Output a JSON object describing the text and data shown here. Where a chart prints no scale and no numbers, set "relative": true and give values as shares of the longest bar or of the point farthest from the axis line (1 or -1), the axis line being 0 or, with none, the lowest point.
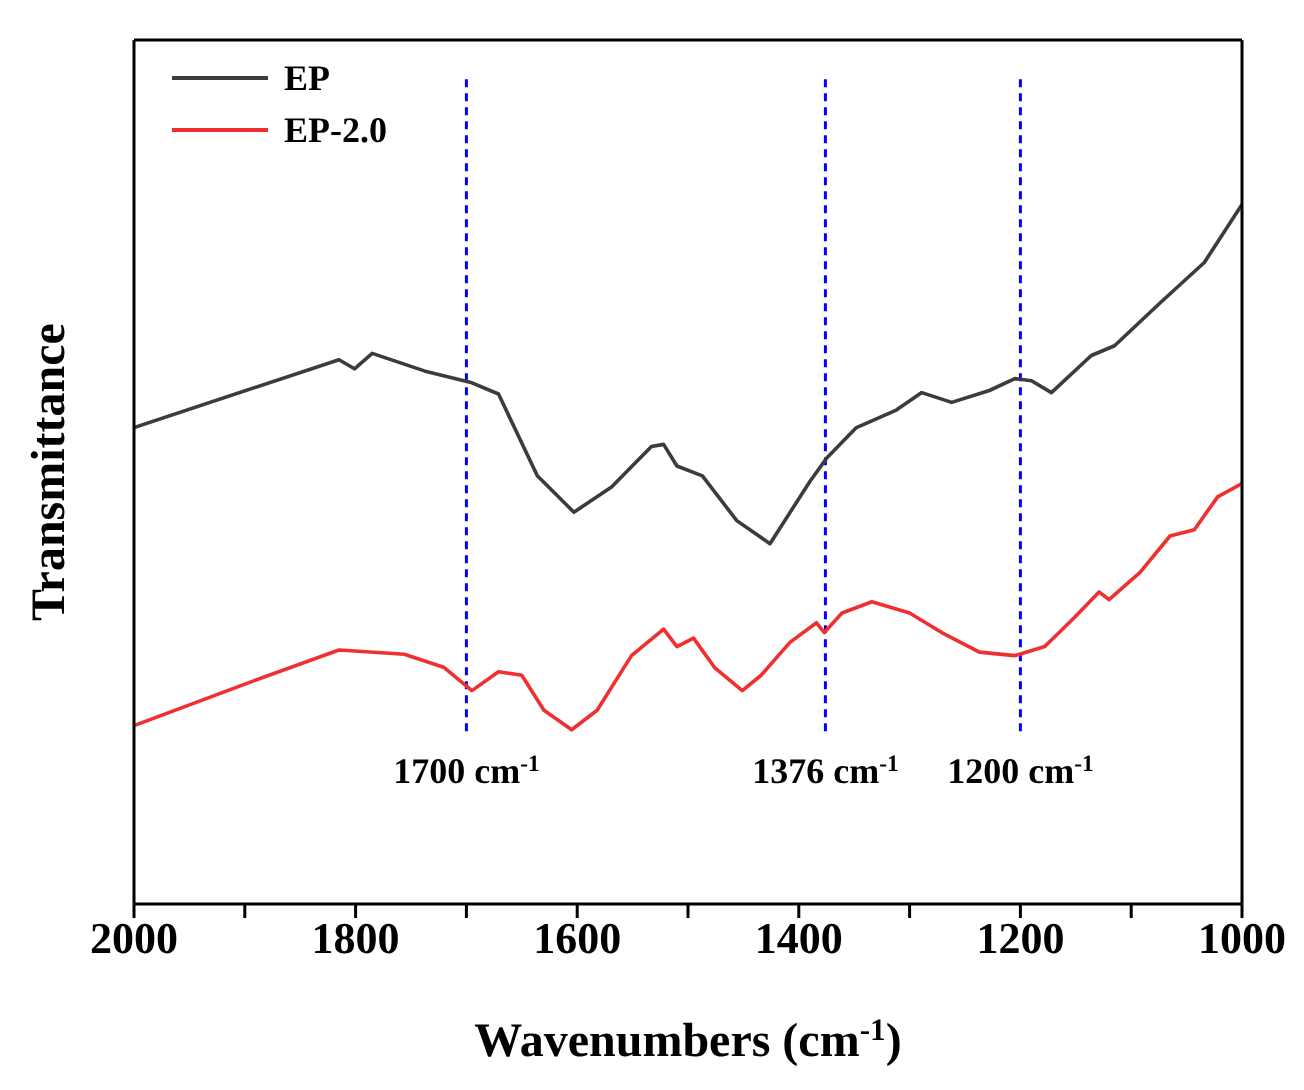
{
  "chart_data": {
    "type": "line",
    "xlabel": "Wavenumbers (cm$^{-1}$)",
    "ylabel": "Transmittance",
    "relative": true,
    "legend": "top left",
    "line_style": "solid",
    "marker": "none",
    "xlim": [
      2000,
      1000
    ],
    "xticks": [
      2000,
      {
        "value": 1900,
        "label": null
      },
      1800,
      {
        "value": 1700,
        "label": null
      },
      1600,
      {
        "value": 1500,
        "label": null
      },
      1400,
      {
        "value": 1300,
        "label": null
      },
      1200,
      {
        "value": 1100,
        "label": null
      },
      1000
    ],
    "series": [
      {
        "name": "EP",
        "color": "#3c3c3c",
        "x": [
          2000,
          1815,
          1801,
          1785,
          1738,
          1695,
          1671,
          1636,
          1603,
          1569,
          1533,
          1522,
          1510,
          1487,
          1456,
          1426,
          1390,
          1375,
          1348,
          1312,
          1289,
          1262,
          1228,
          1205,
          1190,
          1172,
          1136,
          1115,
          1074,
          1034,
          1000
        ],
        "values": [
          0.681,
          0.778,
          0.765,
          0.787,
          0.762,
          0.745,
          0.729,
          0.612,
          0.56,
          0.596,
          0.654,
          0.657,
          0.626,
          0.612,
          0.548,
          0.515,
          0.604,
          0.637,
          0.681,
          0.706,
          0.731,
          0.717,
          0.734,
          0.751,
          0.748,
          0.731,
          0.784,
          0.798,
          0.859,
          0.917,
          1
        ]
      },
      {
        "name": "EP-2.0",
        "color": "#f03030",
        "x": [
          2000,
          1892,
          1815,
          1756,
          1720,
          1695,
          1671,
          1650,
          1630,
          1605,
          1582,
          1551,
          1522,
          1510,
          1495,
          1476,
          1451,
          1434,
          1408,
          1384,
          1377,
          1361,
          1334,
          1300,
          1271,
          1237,
          1205,
          1178,
          1151,
          1129,
          1120,
          1092,
          1065,
          1043,
          1022,
          1000
        ],
        "values": [
          0.255,
          0.319,
          0.363,
          0.357,
          0.338,
          0.305,
          0.332,
          0.327,
          0.277,
          0.249,
          0.277,
          0.355,
          0.393,
          0.368,
          0.38,
          0.338,
          0.305,
          0.327,
          0.374,
          0.402,
          0.388,
          0.416,
          0.432,
          0.416,
          0.388,
          0.36,
          0.355,
          0.368,
          0.41,
          0.446,
          0.435,
          0.474,
          0.526,
          0.535,
          0.582,
          0.601
        ]
      }
    ],
    "ref_lines": [
      {
        "axis": "x",
        "value": 1700,
        "label": "1700 cm$^{-1}$",
        "color": "#0000ff",
        "line_style": "dashed"
      },
      {
        "axis": "x",
        "value": 1376,
        "label": "1376 cm$^{-1}$",
        "color": "#0000ff",
        "line_style": "dashed"
      },
      {
        "axis": "x",
        "value": 1200,
        "label": "1200 cm$^{-1}$",
        "color": "#0000ff",
        "line_style": "dashed"
      }
    ]
  }
}
